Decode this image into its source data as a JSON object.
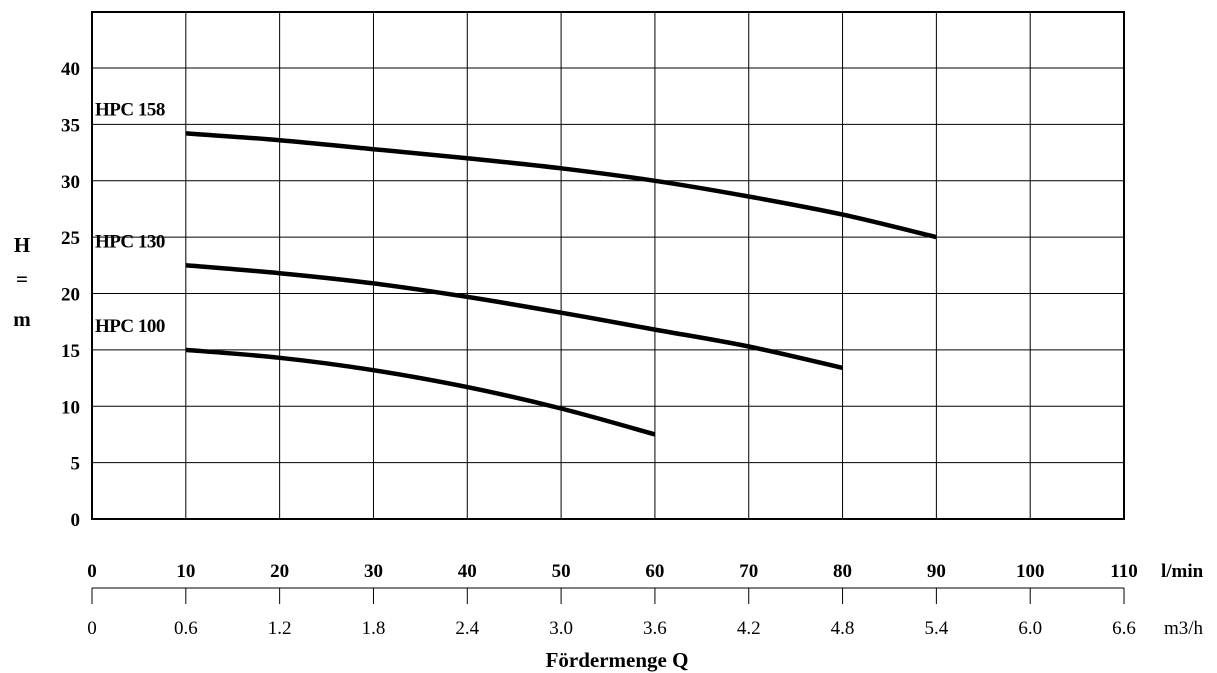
{
  "chart_data": {
    "type": "line",
    "ylabel_lines": [
      "H",
      "=",
      "m"
    ],
    "xlabel": "Fördermenge  Q",
    "ylim": [
      0,
      45
    ],
    "xlim": [
      0,
      120
    ],
    "grid": true,
    "y_ticks": [
      "0",
      "5",
      "10",
      "15",
      "20",
      "25",
      "30",
      "35",
      "40"
    ],
    "x_ticks_primary": [
      "0",
      "10",
      "20",
      "30",
      "40",
      "50",
      "60",
      "70",
      "80",
      "90",
      "100",
      "110"
    ],
    "x_unit_primary": "l/min",
    "x_ticks_secondary": [
      "0",
      "0.6",
      "1.2",
      "1.8",
      "2.4",
      "3.0",
      "3.6",
      "4.2",
      "4.8",
      "5.4",
      "6.0",
      "6.6"
    ],
    "x_unit_secondary": "m3/h",
    "series": [
      {
        "name": "HPC 158",
        "x": [
          10,
          20,
          30,
          40,
          50,
          60,
          70,
          80,
          90
        ],
        "y": [
          34.2,
          33.6,
          32.8,
          32.0,
          31.1,
          30.0,
          28.6,
          27.0,
          25.0
        ]
      },
      {
        "name": "HPC 130",
        "x": [
          10,
          20,
          30,
          40,
          50,
          60,
          70,
          80
        ],
        "y": [
          22.5,
          21.8,
          20.9,
          19.7,
          18.3,
          16.8,
          15.3,
          13.4
        ]
      },
      {
        "name": "HPC 100",
        "x": [
          10,
          20,
          30,
          40,
          50,
          60
        ],
        "y": [
          15.0,
          14.3,
          13.2,
          11.7,
          9.8,
          7.5
        ]
      }
    ]
  }
}
